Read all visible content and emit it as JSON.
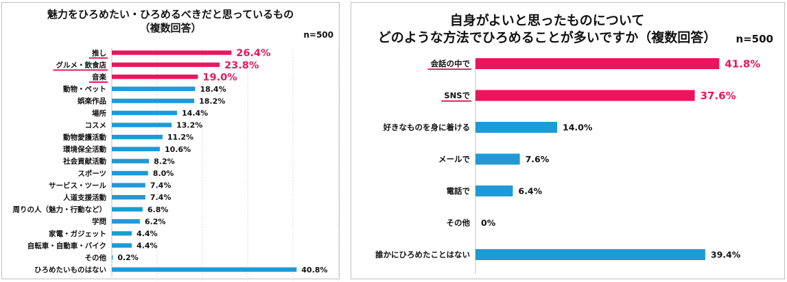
{
  "left": {
    "title_line1": "魅力をひろめたい・ひろめるべきだと思っているもの",
    "title_line2": "（複数回答）",
    "n_label": "n=500"
  },
  "right": {
    "title_line1": "自身がよいと思ったものについて",
    "title_line2": "どのような方法でひろめることが多いですか（複数回答）",
    "n_label": "n=500"
  },
  "colors": {
    "highlight": "#e8175d",
    "normal": "#1f9ad6"
  },
  "chart_data": [
    {
      "type": "bar",
      "orientation": "horizontal",
      "title": "魅力をひろめたい・ひろめるべきだと思っているもの（複数回答）",
      "categories": [
        "推し",
        "グルメ・飲食店",
        "音楽",
        "動物・ペット",
        "娯楽作品",
        "場所",
        "コスメ",
        "動物愛護活動",
        "環境保全活動",
        "社会貢献活動",
        "スポーツ",
        "サービス・ツール",
        "人道支援活動",
        "周りの人（魅力・行動など）",
        "学問",
        "家電・ガジェット",
        "自転車・自動車・バイク",
        "その他",
        "ひろめたいものはない"
      ],
      "values": [
        26.4,
        23.8,
        19.0,
        18.4,
        18.2,
        14.4,
        13.2,
        11.2,
        10.6,
        8.2,
        8.0,
        7.4,
        7.4,
        6.8,
        6.2,
        4.4,
        4.4,
        0.2,
        40.8
      ],
      "labels": [
        "26.4%",
        "23.8%",
        "19.0%",
        "18.4%",
        "18.2%",
        "14.4%",
        "13.2%",
        "11.2%",
        "10.6%",
        "8.2%",
        "8.0%",
        "7.4%",
        "7.4%",
        "6.8%",
        "6.2%",
        "4.4%",
        "4.4%",
        "0.2%",
        "40.8%"
      ],
      "highlight_count": 3,
      "xlim": [
        0,
        50
      ],
      "grid": true
    },
    {
      "type": "bar",
      "orientation": "horizontal",
      "title": "どのような方法でひろめることが多いですか（複数回答）",
      "categories": [
        "会話の中で",
        "SNSで",
        "好きなものを身に着ける",
        "メールで",
        "電話で",
        "その他",
        "誰かにひろめたことはない"
      ],
      "values": [
        41.8,
        37.6,
        14.0,
        7.6,
        6.4,
        0,
        39.4
      ],
      "labels": [
        "41.8%",
        "37.6%",
        "14.0%",
        "7.6%",
        "6.4%",
        "0%",
        "39.4%"
      ],
      "highlight_count": 2,
      "xlim": [
        0,
        50
      ],
      "grid": false
    }
  ]
}
